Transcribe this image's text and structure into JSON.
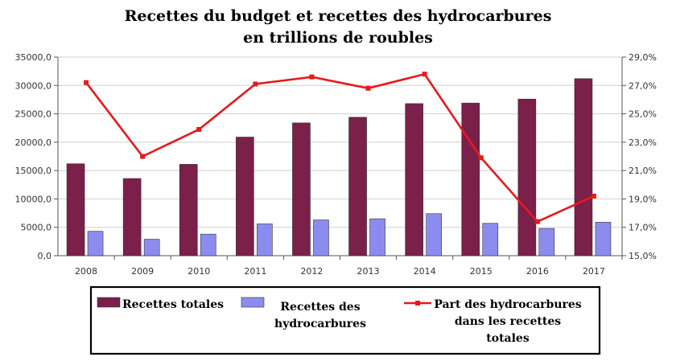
{
  "chart_data": {
    "type": "bar",
    "title_line1": "Recettes du budget et recettes des hydrocarbures",
    "title_line2": "en trillions de roubles",
    "categories": [
      "2008",
      "2009",
      "2010",
      "2011",
      "2012",
      "2013",
      "2014",
      "2015",
      "2016",
      "2017"
    ],
    "series": [
      {
        "name": "Recettes totales",
        "type": "bar",
        "axis": "left",
        "color": "#7B1F4B",
        "values": [
          16200,
          13600,
          16100,
          20900,
          23400,
          24400,
          26800,
          26900,
          27600,
          31200
        ]
      },
      {
        "name": "Recettes des hydrocarbures",
        "type": "bar",
        "axis": "left",
        "color": "#8C8CF0",
        "values": [
          4300,
          2900,
          3800,
          5600,
          6300,
          6500,
          7400,
          5700,
          4800,
          5900
        ]
      },
      {
        "name": "Part des hydrocarbures dans les recettes totales",
        "type": "line",
        "axis": "right",
        "color": "#E8191C",
        "values": [
          27.2,
          22.0,
          23.9,
          27.1,
          27.6,
          26.8,
          27.8,
          21.9,
          17.4,
          19.2
        ]
      }
    ],
    "y_left": {
      "min": 0,
      "max": 35000,
      "step": 5000,
      "tick_labels": [
        "0,0",
        "5000,0",
        "10000,0",
        "15000,0",
        "20000,0",
        "25000,0",
        "30000,0",
        "35000,0"
      ]
    },
    "y_right": {
      "min": 15,
      "max": 29,
      "step": 2,
      "tick_labels": [
        "15,0%",
        "17,0%",
        "19,0%",
        "21,0%",
        "23,0%",
        "25,0%",
        "27,0%",
        "29,0%"
      ]
    },
    "grid": true,
    "legend": {
      "placement": "bottom",
      "items": [
        {
          "lines": [
            "Recettes totales"
          ]
        },
        {
          "lines": [
            "Recettes des",
            "hydrocarbures"
          ]
        },
        {
          "lines": [
            "Part des hydrocarbures",
            "dans les recettes",
            "totales"
          ]
        }
      ]
    }
  }
}
